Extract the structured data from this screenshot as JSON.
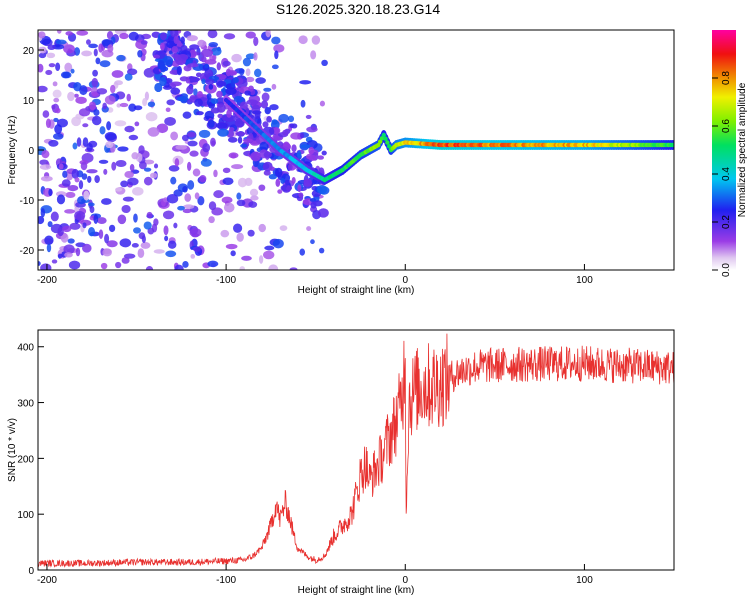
{
  "title": "S126.2025.320.18.23.G14",
  "colors": {
    "snr_line": "#e8312f",
    "axis": "#000000",
    "background": "#ffffff"
  },
  "chart_data": [
    {
      "type": "heatmap",
      "name": "spectrogram",
      "xlabel": "Height of straight line (km)",
      "ylabel": "Frequency (Hz)",
      "xlim": [
        -205,
        150
      ],
      "ylim": [
        -24,
        24
      ],
      "xticks": [
        -200,
        -100,
        0,
        100
      ],
      "yticks": [
        -20,
        -10,
        0,
        10,
        20
      ],
      "colorbar": {
        "label": "Normalized spectral amplitude",
        "range": [
          0,
          1
        ],
        "ticks": [
          "0.0",
          "0.2",
          "0.4",
          "0.6",
          "0.8"
        ],
        "colormap": "rainbow (violet-blue-cyan-green-yellow-red-magenta)"
      },
      "ridge": {
        "description": "dominant frequency track",
        "x": [
          -100,
          -85,
          -70,
          -55,
          -45,
          -35,
          -25,
          -15,
          -12,
          -8,
          -5,
          0,
          20,
          50,
          100,
          150
        ],
        "freq": [
          10,
          5,
          0,
          -4,
          -6,
          -4,
          -1,
          1,
          3,
          0,
          1,
          1.5,
          1,
          1,
          1,
          1
        ],
        "amplitude": [
          0.25,
          0.3,
          0.35,
          0.4,
          0.5,
          0.55,
          0.6,
          0.65,
          0.55,
          0.6,
          0.7,
          0.75,
          0.9,
          0.85,
          0.8,
          0.55
        ]
      },
      "scatter_region": {
        "x_range": [
          -205,
          -45
        ],
        "freq_range": [
          -24,
          24
        ],
        "amplitude": [
          0.05,
          0.3
        ]
      }
    },
    {
      "type": "line",
      "name": "snr",
      "xlabel": "Height of straight line (km)",
      "ylabel": "SNR (10 * v/v)",
      "xlim": [
        -205,
        150
      ],
      "ylim": [
        0,
        430
      ],
      "xticks": [
        -200,
        -100,
        0,
        100
      ],
      "yticks": [
        0,
        100,
        200,
        300,
        400
      ],
      "series": [
        {
          "name": "SNR",
          "x": [
            -205,
            -180,
            -150,
            -120,
            -100,
            -90,
            -85,
            -80,
            -75,
            -72,
            -70,
            -67,
            -65,
            -62,
            -60,
            -55,
            -50,
            -45,
            -40,
            -35,
            -30,
            -27,
            -25,
            -22,
            -20,
            -15,
            -12,
            -10,
            -7,
            -5,
            -3,
            -1,
            0,
            0.5,
            2,
            5,
            10,
            15,
            20,
            25,
            30,
            40,
            60,
            100,
            150
          ],
          "values": [
            12,
            12,
            14,
            14,
            16,
            18,
            25,
            40,
            80,
            120,
            90,
            120,
            100,
            60,
            40,
            25,
            18,
            25,
            60,
            80,
            100,
            140,
            170,
            190,
            160,
            190,
            210,
            230,
            250,
            270,
            290,
            330,
            420,
            100,
            300,
            320,
            330,
            330,
            335,
            345,
            355,
            365,
            368,
            370,
            362
          ],
          "noise": 22
        }
      ]
    }
  ]
}
